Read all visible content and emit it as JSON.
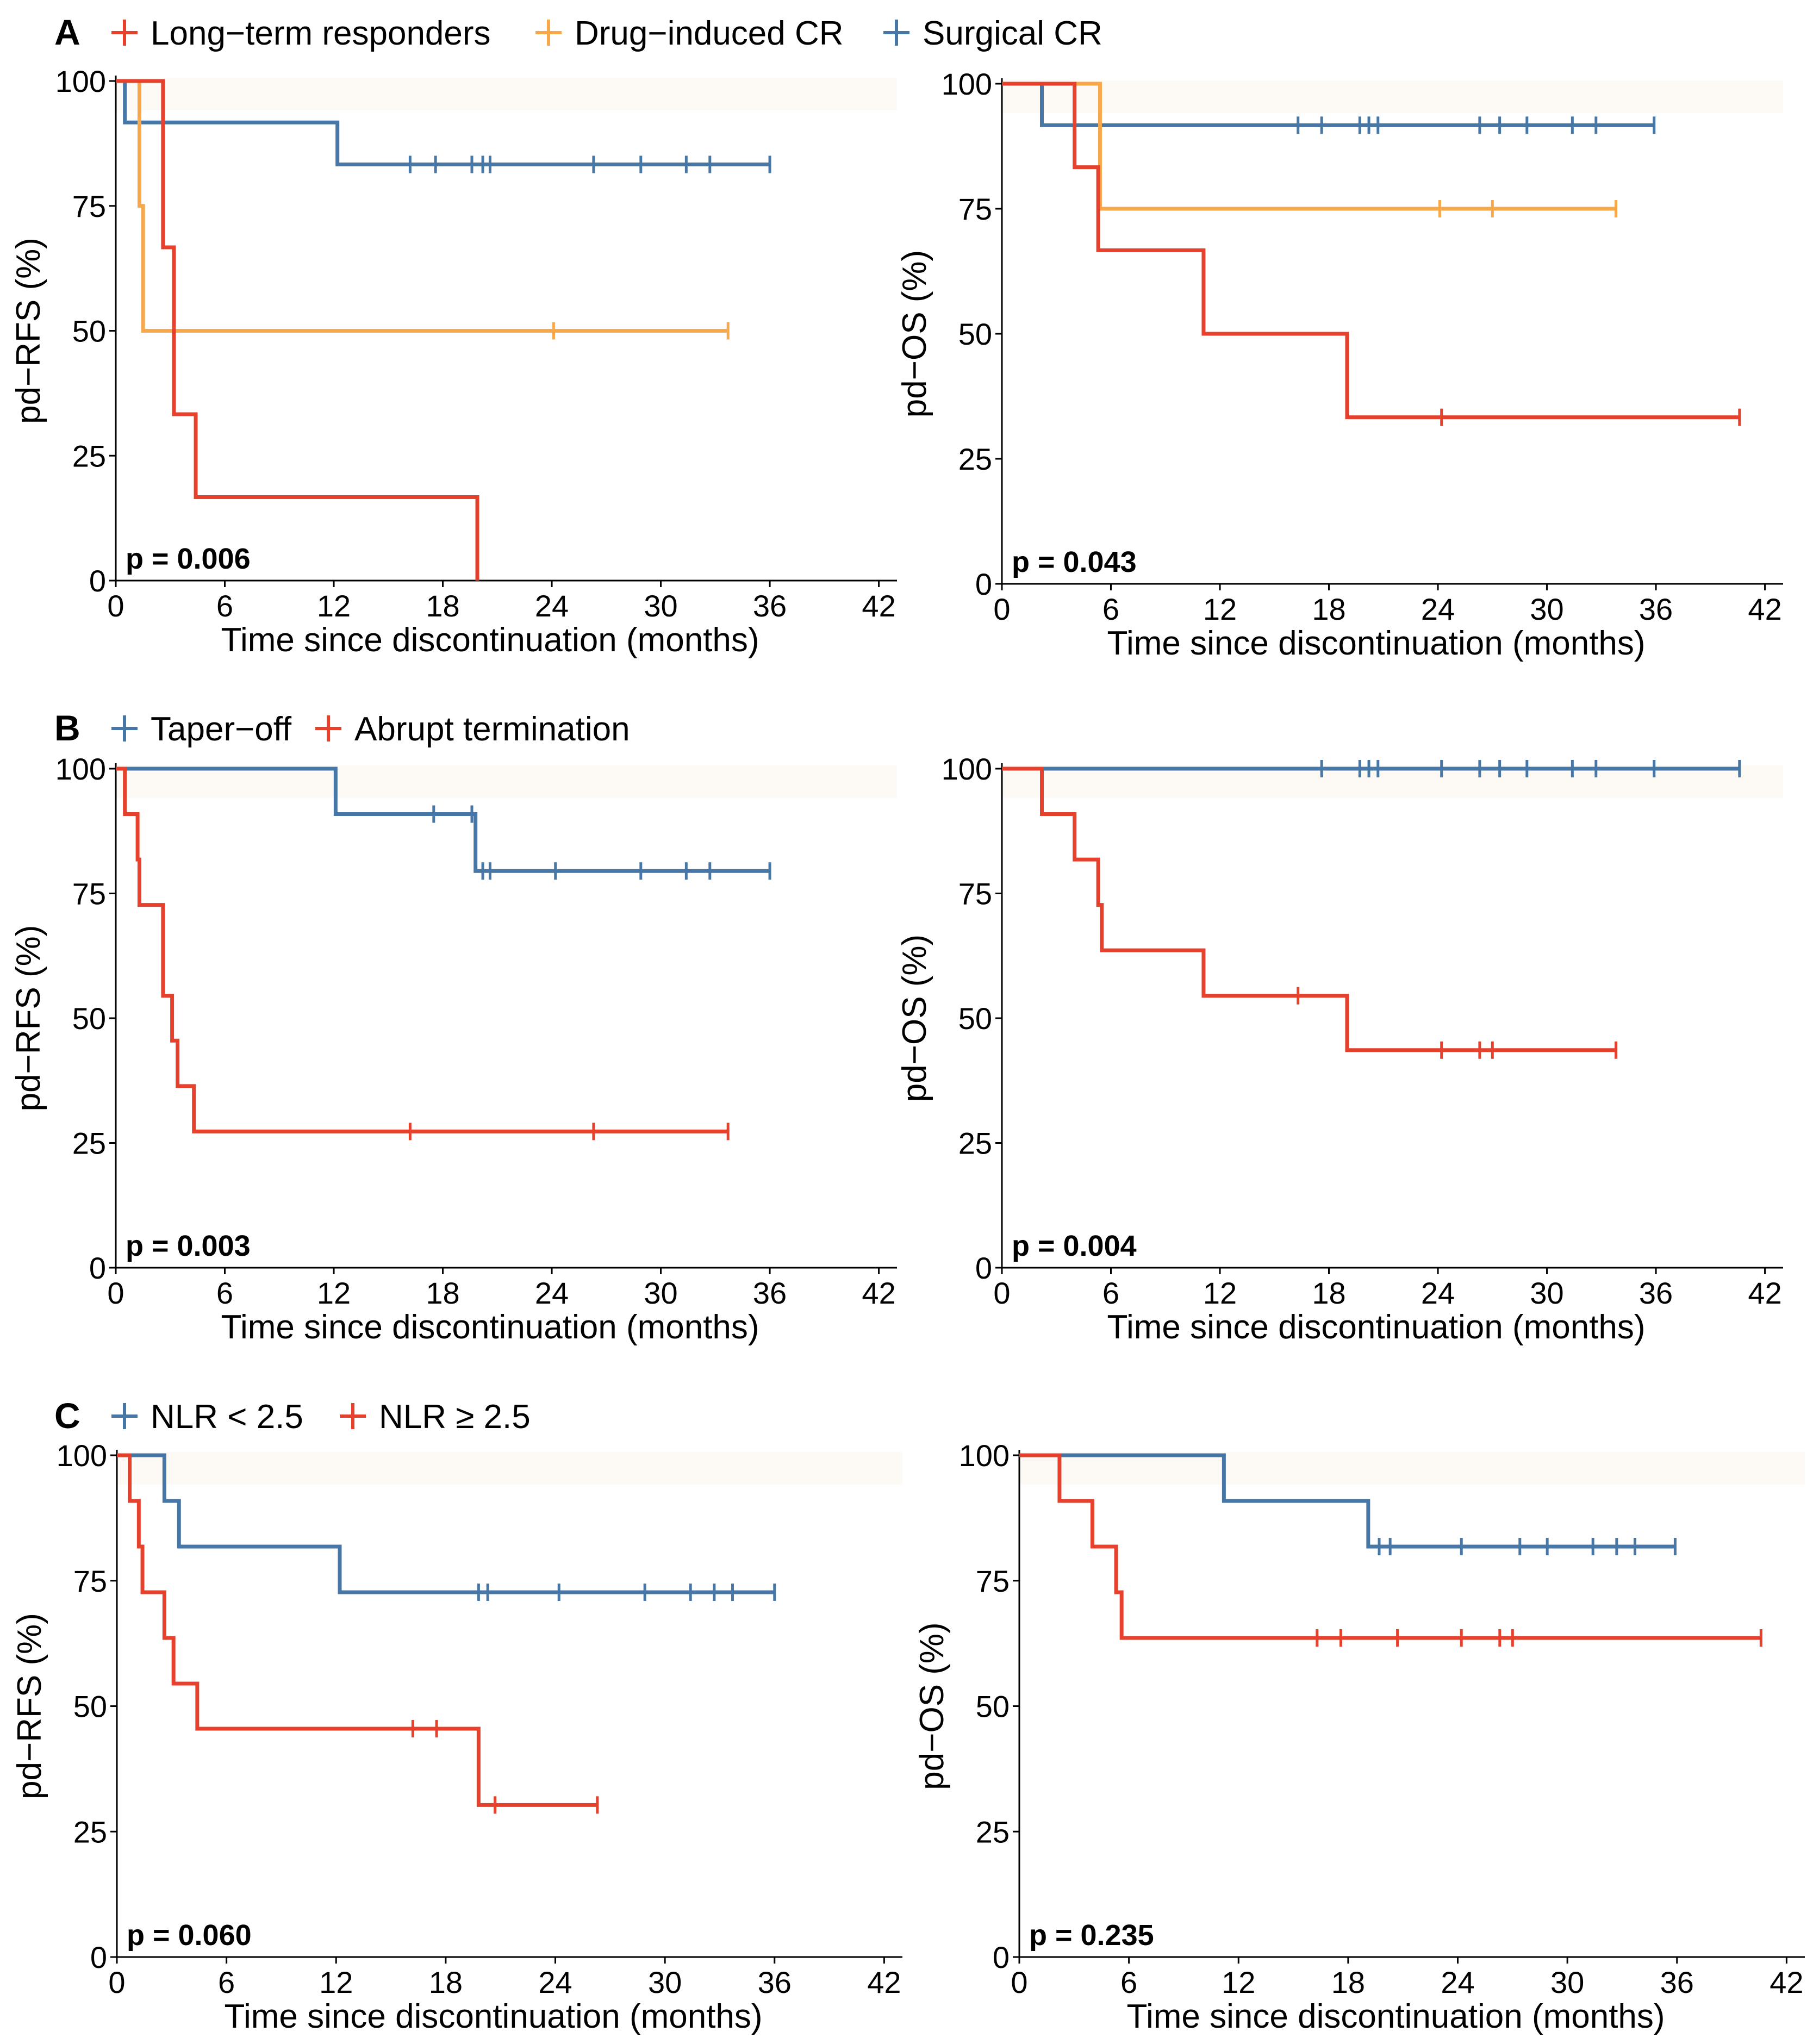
{
  "colors": {
    "red": "#e5412c",
    "orange": "#f6a84b",
    "blue": "#4777a6"
  },
  "legends": [
    {
      "panel": "A",
      "items": [
        {
          "label": "Long−term responders",
          "color": "#e5412c"
        },
        {
          "label": "Drug−induced CR",
          "color": "#f6a84b"
        },
        {
          "label": "Surgical CR",
          "color": "#4777a6"
        }
      ]
    },
    {
      "panel": "B",
      "items": [
        {
          "label": "Taper−off",
          "color": "#4777a6"
        },
        {
          "label": "Abrupt termination",
          "color": "#e5412c"
        }
      ]
    },
    {
      "panel": "C",
      "items": [
        {
          "label": "NLR < 2.5",
          "color": "#4777a6"
        },
        {
          "label": "NLR ≥ 2.5",
          "color": "#e5412c"
        }
      ]
    }
  ],
  "chart_data": [
    {
      "id": "A-left",
      "type": "line",
      "step": "km",
      "xlabel": "Time since discontinuation (months)",
      "ylabel": "pd−RFS (%)",
      "xlim": [
        0,
        43
      ],
      "ylim": [
        0,
        100
      ],
      "xticks": [
        0,
        6,
        12,
        18,
        24,
        30,
        36,
        42
      ],
      "yticks": [
        0,
        25,
        50,
        75,
        100
      ],
      "pvalue": "p = 0.006",
      "series": [
        {
          "name": "Surgical CR",
          "color": "#4777a6",
          "steps": [
            [
              0,
              100
            ],
            [
              0.5,
              91.7
            ],
            [
              12.2,
              83.3
            ],
            [
              36,
              83.3
            ]
          ],
          "censors": [
            [
              16.2,
              83.3
            ],
            [
              17.6,
              83.3
            ],
            [
              19.6,
              83.3
            ],
            [
              20.2,
              83.3
            ],
            [
              20.6,
              83.3
            ],
            [
              26.3,
              83.3
            ],
            [
              28.9,
              83.3
            ],
            [
              31.4,
              83.3
            ],
            [
              32.7,
              83.3
            ],
            [
              36,
              83.3
            ]
          ]
        },
        {
          "name": "Drug−induced CR",
          "color": "#f6a84b",
          "steps": [
            [
              0,
              100
            ],
            [
              1.3,
              75
            ],
            [
              1.5,
              50
            ],
            [
              33.7,
              50
            ]
          ],
          "censors": [
            [
              24.1,
              50
            ],
            [
              33.7,
              50
            ]
          ]
        },
        {
          "name": "Long−term responders",
          "color": "#e5412c",
          "steps": [
            [
              0,
              100
            ],
            [
              2.6,
              66.7
            ],
            [
              3.2,
              33.3
            ],
            [
              4.4,
              16.7
            ],
            [
              19.9,
              0
            ]
          ],
          "censors": []
        }
      ]
    },
    {
      "id": "A-right",
      "type": "line",
      "step": "km",
      "xlabel": "Time since discontinuation (months)",
      "ylabel": "pd−OS (%)",
      "xlim": [
        0,
        43
      ],
      "ylim": [
        0,
        100
      ],
      "xticks": [
        0,
        6,
        12,
        18,
        24,
        30,
        36,
        42
      ],
      "yticks": [
        0,
        25,
        50,
        75,
        100
      ],
      "pvalue": "p = 0.043",
      "series": [
        {
          "name": "Surgical CR",
          "color": "#4777a6",
          "steps": [
            [
              0,
              100
            ],
            [
              2.2,
              91.7
            ],
            [
              35.9,
              91.7
            ]
          ],
          "censors": [
            [
              16.3,
              91.7
            ],
            [
              17.6,
              91.7
            ],
            [
              19.7,
              91.7
            ],
            [
              20.2,
              91.7
            ],
            [
              20.7,
              91.7
            ],
            [
              26.3,
              91.7
            ],
            [
              27.4,
              91.7
            ],
            [
              28.9,
              91.7
            ],
            [
              31.4,
              91.7
            ],
            [
              32.7,
              91.7
            ],
            [
              35.9,
              91.7
            ]
          ]
        },
        {
          "name": "Drug−induced CR",
          "color": "#f6a84b",
          "steps": [
            [
              0,
              100
            ],
            [
              5.4,
              75
            ],
            [
              33.8,
              75
            ]
          ],
          "censors": [
            [
              24.1,
              75
            ],
            [
              27,
              75
            ],
            [
              33.8,
              75
            ]
          ]
        },
        {
          "name": "Long−term responders",
          "color": "#e5412c",
          "steps": [
            [
              0,
              100
            ],
            [
              4,
              83.3
            ],
            [
              5.3,
              66.7
            ],
            [
              11.1,
              50
            ],
            [
              19,
              33.3
            ],
            [
              40.6,
              33.3
            ]
          ],
          "censors": [
            [
              24.2,
              33.3
            ],
            [
              40.6,
              33.3
            ]
          ]
        }
      ]
    },
    {
      "id": "B-left",
      "type": "line",
      "step": "km",
      "xlabel": "Time since discontinuation (months)",
      "ylabel": "pd−RFS (%)",
      "xlim": [
        0,
        43
      ],
      "ylim": [
        0,
        100
      ],
      "xticks": [
        0,
        6,
        12,
        18,
        24,
        30,
        36,
        42
      ],
      "yticks": [
        0,
        25,
        50,
        75,
        100
      ],
      "pvalue": "p = 0.003",
      "series": [
        {
          "name": "Taper−off",
          "color": "#4777a6",
          "steps": [
            [
              0,
              100
            ],
            [
              12.1,
              90.9
            ],
            [
              19.8,
              79.5
            ],
            [
              36,
              79.5
            ]
          ],
          "censors": [
            [
              17.5,
              90.9
            ],
            [
              19.6,
              90.9
            ],
            [
              20.2,
              79.5
            ],
            [
              20.6,
              79.5
            ],
            [
              24.2,
              79.5
            ],
            [
              28.9,
              79.5
            ],
            [
              31.4,
              79.5
            ],
            [
              32.7,
              79.5
            ],
            [
              36,
              79.5
            ]
          ]
        },
        {
          "name": "Abrupt termination",
          "color": "#e5412c",
          "steps": [
            [
              0,
              100
            ],
            [
              0.5,
              90.9
            ],
            [
              1.2,
              81.8
            ],
            [
              1.3,
              72.7
            ],
            [
              2.6,
              54.5
            ],
            [
              3.1,
              45.5
            ],
            [
              3.4,
              36.4
            ],
            [
              4.3,
              27.3
            ],
            [
              33.7,
              27.3
            ]
          ],
          "censors": [
            [
              16.2,
              27.3
            ],
            [
              26.3,
              27.3
            ],
            [
              33.7,
              27.3
            ]
          ]
        }
      ]
    },
    {
      "id": "B-right",
      "type": "line",
      "step": "km",
      "xlabel": "Time since discontinuation (months)",
      "ylabel": "pd−OS (%)",
      "xlim": [
        0,
        43
      ],
      "ylim": [
        0,
        100
      ],
      "xticks": [
        0,
        6,
        12,
        18,
        24,
        30,
        36,
        42
      ],
      "yticks": [
        0,
        25,
        50,
        75,
        100
      ],
      "pvalue": "p = 0.004",
      "series": [
        {
          "name": "Taper−off",
          "color": "#4777a6",
          "steps": [
            [
              0,
              100
            ],
            [
              40.6,
              100
            ]
          ],
          "censors": [
            [
              17.6,
              100
            ],
            [
              19.7,
              100
            ],
            [
              20.2,
              100
            ],
            [
              20.7,
              100
            ],
            [
              24.2,
              100
            ],
            [
              26.3,
              100
            ],
            [
              27.4,
              100
            ],
            [
              28.9,
              100
            ],
            [
              31.4,
              100
            ],
            [
              32.7,
              100
            ],
            [
              35.9,
              100
            ],
            [
              40.6,
              100
            ]
          ]
        },
        {
          "name": "Abrupt termination",
          "color": "#e5412c",
          "steps": [
            [
              0,
              100
            ],
            [
              2.2,
              90.9
            ],
            [
              4,
              81.8
            ],
            [
              5.3,
              72.7
            ],
            [
              5.5,
              63.6
            ],
            [
              11.1,
              54.5
            ],
            [
              19,
              43.6
            ],
            [
              33.8,
              43.6
            ]
          ],
          "censors": [
            [
              16.3,
              54.5
            ],
            [
              24.2,
              43.6
            ],
            [
              26.3,
              43.6
            ],
            [
              27,
              43.6
            ],
            [
              33.8,
              43.6
            ]
          ]
        }
      ]
    },
    {
      "id": "C-left",
      "type": "line",
      "step": "km",
      "xlabel": "Time since discontinuation (months)",
      "ylabel": "pd−RFS (%)",
      "xlim": [
        0,
        43
      ],
      "ylim": [
        0,
        100
      ],
      "xticks": [
        0,
        6,
        12,
        18,
        24,
        30,
        36,
        42
      ],
      "yticks": [
        0,
        25,
        50,
        75,
        100
      ],
      "pvalue": "p = 0.060",
      "series": [
        {
          "name": "NLR < 2.5",
          "color": "#4777a6",
          "steps": [
            [
              0,
              100
            ],
            [
              2.6,
              90.9
            ],
            [
              3.4,
              81.8
            ],
            [
              12.2,
              72.7
            ],
            [
              36,
              72.7
            ]
          ],
          "censors": [
            [
              19.8,
              72.7
            ],
            [
              20.3,
              72.7
            ],
            [
              24.2,
              72.7
            ],
            [
              28.9,
              72.7
            ],
            [
              31.4,
              72.7
            ],
            [
              32.7,
              72.7
            ],
            [
              33.7,
              72.7
            ],
            [
              36,
              72.7
            ]
          ]
        },
        {
          "name": "NLR ≥ 2.5",
          "color": "#e5412c",
          "steps": [
            [
              0,
              100
            ],
            [
              0.7,
              90.9
            ],
            [
              1.2,
              81.8
            ],
            [
              1.4,
              72.7
            ],
            [
              2.6,
              63.6
            ],
            [
              3.1,
              54.5
            ],
            [
              4.4,
              45.5
            ],
            [
              19.8,
              30.3
            ],
            [
              26.3,
              30.3
            ]
          ],
          "censors": [
            [
              16.2,
              45.5
            ],
            [
              17.5,
              45.5
            ],
            [
              20.7,
              30.3
            ],
            [
              26.3,
              30.3
            ]
          ]
        }
      ]
    },
    {
      "id": "C-right",
      "type": "line",
      "step": "km",
      "xlabel": "Time since discontinuation (months)",
      "ylabel": "pd−OS (%)",
      "xlim": [
        0,
        43
      ],
      "ylim": [
        0,
        100
      ],
      "xticks": [
        0,
        6,
        12,
        18,
        24,
        30,
        36,
        42
      ],
      "yticks": [
        0,
        25,
        50,
        75,
        100
      ],
      "pvalue": "p = 0.235",
      "series": [
        {
          "name": "NLR < 2.5",
          "color": "#4777a6",
          "steps": [
            [
              0,
              100
            ],
            [
              11.2,
              90.9
            ],
            [
              19.1,
              81.8
            ],
            [
              35.9,
              81.8
            ]
          ],
          "censors": [
            [
              19.7,
              81.8
            ],
            [
              20.3,
              81.8
            ],
            [
              24.2,
              81.8
            ],
            [
              27.4,
              81.8
            ],
            [
              28.9,
              81.8
            ],
            [
              31.4,
              81.8
            ],
            [
              32.7,
              81.8
            ],
            [
              33.7,
              81.8
            ],
            [
              35.9,
              81.8
            ]
          ]
        },
        {
          "name": "NLR ≥ 2.5",
          "color": "#e5412c",
          "steps": [
            [
              0,
              100
            ],
            [
              2.2,
              90.9
            ],
            [
              4,
              81.8
            ],
            [
              5.3,
              72.7
            ],
            [
              5.6,
              63.6
            ],
            [
              40.6,
              63.6
            ]
          ],
          "censors": [
            [
              16.3,
              63.6
            ],
            [
              17.6,
              63.6
            ],
            [
              20.7,
              63.6
            ],
            [
              24.2,
              63.6
            ],
            [
              26.3,
              63.6
            ],
            [
              27,
              63.6
            ],
            [
              40.6,
              63.6
            ]
          ]
        }
      ]
    }
  ]
}
